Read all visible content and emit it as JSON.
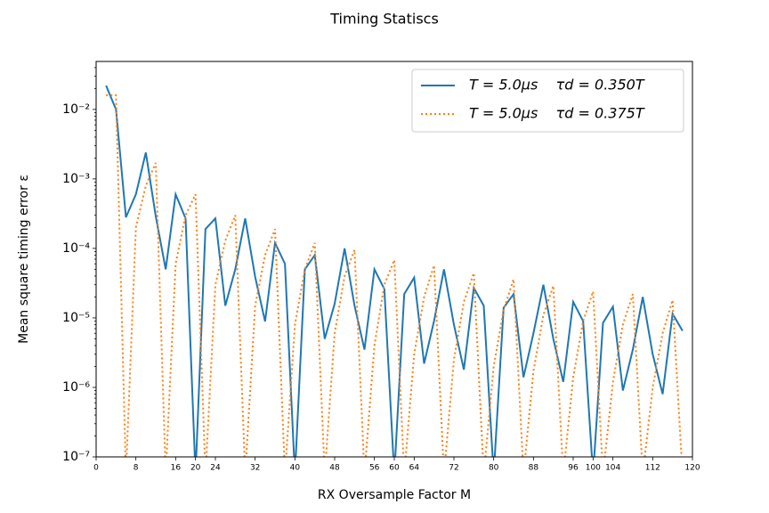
{
  "chart_data": {
    "type": "line",
    "title": "Timing Statiscs",
    "xlabel": "RX Oversample Factor M",
    "ylabel": "Mean square timing error ε",
    "x": [
      2,
      4,
      6,
      8,
      10,
      12,
      14,
      16,
      18,
      20,
      22,
      24,
      26,
      28,
      30,
      32,
      34,
      36,
      38,
      40,
      42,
      44,
      46,
      48,
      50,
      52,
      54,
      56,
      58,
      60,
      62,
      64,
      66,
      68,
      70,
      72,
      74,
      76,
      78,
      80,
      82,
      84,
      86,
      88,
      90,
      92,
      94,
      96,
      98,
      100,
      102,
      104,
      106,
      108,
      110,
      112,
      114,
      116,
      118
    ],
    "series": [
      {
        "name": "T = 5.0μs    τd = 0.350T",
        "color": "#1f77b4",
        "style": "solid",
        "values": [
          0.022,
          0.01,
          0.00028,
          0.0006,
          0.0024,
          0.00029,
          5e-05,
          0.0006,
          0.00027,
          0,
          0.00019,
          0.00027,
          1.5e-05,
          5e-05,
          0.00027,
          3.9e-05,
          8.9e-06,
          0.00012,
          6e-05,
          0,
          5e-05,
          8e-05,
          5e-06,
          1.6e-05,
          0.0001,
          1.5e-05,
          3.5e-06,
          5e-05,
          2.6e-05,
          0,
          2.2e-05,
          3.8e-05,
          2.2e-06,
          9e-06,
          5e-05,
          8e-06,
          1.8e-06,
          2.7e-05,
          1.5e-05,
          0,
          1.4e-05,
          2.2e-05,
          1.4e-06,
          6e-06,
          3e-05,
          5e-06,
          1.2e-06,
          1.7e-05,
          9e-06,
          0,
          8.5e-06,
          1.45e-05,
          9e-07,
          3.5e-06,
          2e-05,
          3e-06,
          8e-07,
          1.15e-05,
          6.5e-06
        ]
      },
      {
        "name": "T = 5.0μs    τd = 0.375T",
        "color": "#ff7f0e",
        "style": "dotted",
        "values": [
          0.016,
          0.016,
          0,
          0.0002,
          0.0008,
          0.0017,
          0,
          6e-05,
          0.0003,
          0.0006,
          0,
          3e-05,
          0.00013,
          0.0003,
          0,
          1.5e-05,
          8e-05,
          0.00019,
          0,
          8e-06,
          5e-05,
          0.00012,
          0,
          6e-06,
          4e-05,
          9.5e-05,
          0,
          4e-06,
          3e-05,
          6.8e-05,
          0,
          3e-06,
          2e-05,
          5.7e-05,
          0,
          2.5e-06,
          1.7e-05,
          4.4e-05,
          0,
          2e-06,
          1.3e-05,
          3.6e-05,
          0,
          1.7e-06,
          1.1e-05,
          2.9e-05,
          0,
          1.4e-06,
          9e-06,
          2.4e-05,
          0,
          1.2e-06,
          8e-06,
          2.2e-05,
          0,
          1e-06,
          6e-06,
          1.8e-05,
          0
        ]
      }
    ],
    "xlim": [
      0,
      120
    ],
    "xticks": [
      0,
      8,
      16,
      20,
      24,
      32,
      40,
      48,
      56,
      60,
      64,
      72,
      80,
      88,
      96,
      100,
      104,
      112,
      120
    ],
    "ylim": [
      1e-07,
      0.049
    ],
    "yscale": "log",
    "yticks": [
      {
        "value": 1e-07,
        "label": "10⁻⁷"
      },
      {
        "value": 1e-06,
        "label": "10⁻⁶"
      },
      {
        "value": 1e-05,
        "label": "10⁻⁵"
      },
      {
        "value": 0.0001,
        "label": "10⁻⁴"
      },
      {
        "value": 0.001,
        "label": "10⁻³"
      },
      {
        "value": 0.01,
        "label": "10⁻²"
      }
    ],
    "legend": "upper right"
  }
}
